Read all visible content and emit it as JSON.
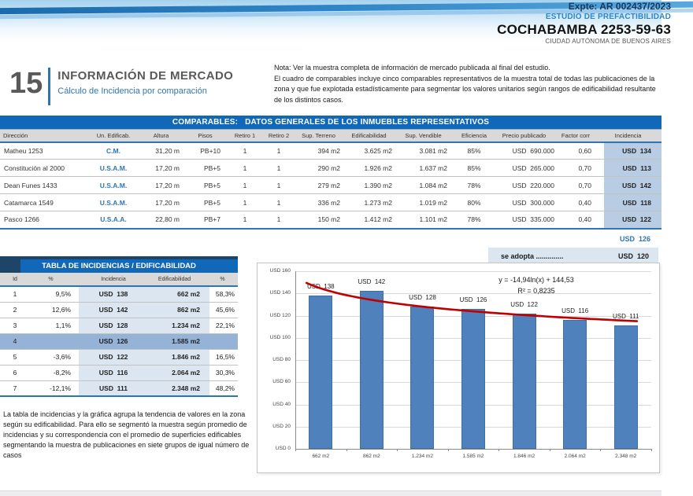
{
  "header": {
    "expte": "Expte: AR 002437/2023",
    "study_type": "ESTUDIO DE PREFACTIBILIDAD",
    "property": "COCHABAMBA 2253-59-63",
    "city": "CIUDAD AUTÓNOMA DE BUENOS AIRES"
  },
  "section": {
    "number": "15",
    "title": "INFORMACIÓN DE MERCADO",
    "subtitle": "Cálculo de Incidencia por comparación"
  },
  "notes": {
    "line1": "Nota: Ver la muestra completa de información de mercado publicada al final del estudio.",
    "line2": "El cuadro de comparables incluye cinco comparables representativos de la muestra total de todas las publicaciones de la zona y que fue explotada estadísticamente para segmentar los valores unitarios según rangos de edificabilidad resultante de los distintos casos."
  },
  "comparables": {
    "title": "COMPARABLES:   DATOS GENERALES DE LOS INMUEBLES REPRESENTATIVOS",
    "columns": [
      "Dirección",
      "Un. Edificab.",
      "Altura",
      "Pisos",
      "Retiro 1",
      "Retiro 2",
      "Sup. Terreno",
      "Edificabilidad",
      "Sup. Vendible",
      "Eficiencia",
      "Precio publicado",
      "Factor corr",
      "Incidencia"
    ],
    "rows": [
      [
        "Matheu 1253",
        "C.M.",
        "31,20 m",
        "PB+10",
        "1",
        "1",
        "394 m2",
        "3.625 m2",
        "3.081 m2",
        "85%",
        "USD  690.000",
        "0,60",
        "USD  134"
      ],
      [
        "Constitución al 2000",
        "U.S.A.M.",
        "17,20 m",
        "PB+5",
        "1",
        "1",
        "290 m2",
        "1.926 m2",
        "1.637 m2",
        "85%",
        "USD  265.000",
        "0,70",
        "USD  113"
      ],
      [
        "Dean Funes 1433",
        "U.S.A.M.",
        "17,20 m",
        "PB+5",
        "1",
        "1",
        "279 m2",
        "1.390 m2",
        "1.084 m2",
        "78%",
        "USD  220.000",
        "0,70",
        "USD  142"
      ],
      [
        "Catamarca 1549",
        "U.S.A.M.",
        "17,20 m",
        "PB+5",
        "1",
        "1",
        "336 m2",
        "1.273 m2",
        "1.019 m2",
        "80%",
        "USD  300.000",
        "0,40",
        "USD  118"
      ],
      [
        "Pasco 1266",
        "U.S.A.A.",
        "22,80 m",
        "PB+7",
        "1",
        "1",
        "150 m2",
        "1.412 m2",
        "1.101 m2",
        "78%",
        "USD  335.000",
        "0,40",
        "USD  122"
      ]
    ],
    "average_incidencia": "USD  126",
    "adopt_label": "se adopta ..............",
    "adopt_value": "USD  120"
  },
  "incidencias": {
    "title": "TABLA DE INCIDENCIAS / EDIFICABILIDAD",
    "columns": [
      "Id",
      "%",
      "Incidencia",
      "Edificabilidad",
      "%"
    ],
    "rows": [
      [
        "1",
        "9,5%",
        "USD  138",
        "662 m2",
        "58,3%"
      ],
      [
        "2",
        "12,6%",
        "USD  142",
        "862 m2",
        "45,6%"
      ],
      [
        "3",
        "1,1%",
        "USD  128",
        "1.234 m2",
        "22,1%"
      ],
      [
        "4",
        "",
        "USD  126",
        "1.585 m2",
        ""
      ],
      [
        "5",
        "-3,6%",
        "USD  122",
        "1.846 m2",
        "16,5%"
      ],
      [
        "6",
        "-8,2%",
        "USD  116",
        "2.064 m2",
        "30,3%"
      ],
      [
        "7",
        "-12,1%",
        "USD  111",
        "2.348 m2",
        "48,2%"
      ]
    ],
    "highlight_row_index": 3
  },
  "footer_note": "La tabla de incidencias y la gráfica agrupa la tendencia de valores en la zona según su edificabilidad. Para ello se segmentó la muestra según promedio de incidencias y su correspondencia con el promedio de superficies edificables segmentando la muestra de publicaciones en siete grupos de igual número de casos",
  "chart_data": {
    "type": "bar",
    "title": "",
    "xlabel": "",
    "ylabel": "",
    "categories": [
      "662 m2",
      "862 m2",
      "1.234 m2",
      "1.585 m2",
      "1.846 m2",
      "2.064 m2",
      "2.348 m2"
    ],
    "values": [
      138,
      142,
      128,
      126,
      122,
      116,
      111
    ],
    "bar_labels": [
      "USD  138",
      "USD  142",
      "USD  128",
      "USD  126",
      "USD  122",
      "USD  116",
      "USD  111"
    ],
    "y_ticks": [
      "USD 160",
      "USD 140",
      "USD 120",
      "USD 100",
      "USD 80",
      "USD 60",
      "USD 40",
      "USD 20",
      "USD 0"
    ],
    "ylim": [
      0,
      160
    ],
    "grid": true,
    "legend": "none",
    "bar_color": "#4f81bd",
    "trendline": {
      "equation_label": "y = -14,94ln(x) + 144,53",
      "r2_label": "R² = 0,8235",
      "a": -14.94,
      "b": 144.53,
      "color": "#c00000"
    }
  },
  "colors": {
    "title_bar_blue": "#1268b8",
    "accent_blue": "#2e75b6",
    "incidencia_column_bg": "#b8cde4",
    "stripe_bg": "#dce6f1",
    "highlight_row_bg": "#95b3d7"
  }
}
